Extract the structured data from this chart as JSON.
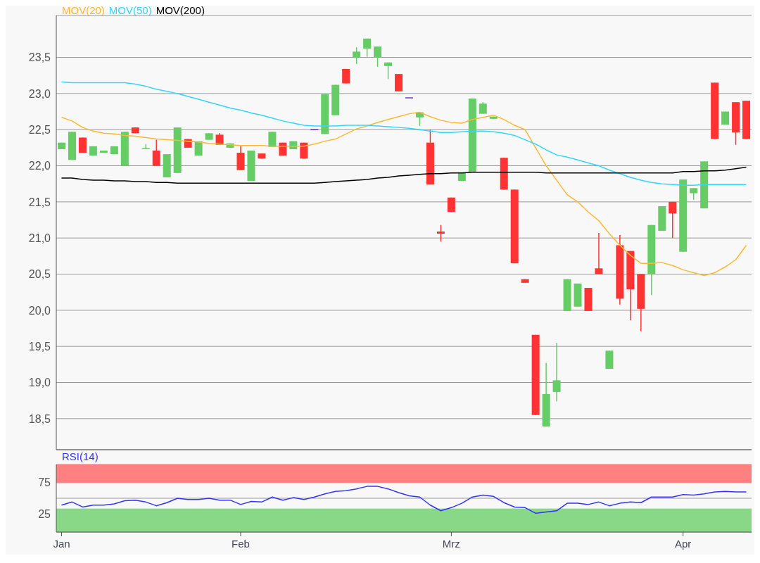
{
  "chart_data": [
    {
      "type": "candlestick",
      "categories": [
        null,
        null,
        null,
        null,
        null,
        null,
        null,
        null,
        null,
        null,
        null,
        null,
        null,
        null,
        null,
        null,
        null,
        null,
        null,
        null,
        null,
        null,
        null,
        null,
        null,
        null,
        null,
        null,
        null,
        null,
        null,
        null,
        null,
        null,
        null,
        null,
        null,
        null,
        null,
        null,
        null,
        null,
        null,
        null,
        null,
        null,
        null,
        null,
        null,
        null,
        null,
        null,
        null,
        null,
        null,
        null,
        null,
        null,
        null,
        null,
        null,
        null,
        null,
        null,
        null,
        null
      ],
      "ohlc": [
        [
          22.23,
          22.32,
          22.23,
          22.32
        ],
        [
          22.08,
          22.47,
          22.08,
          22.47
        ],
        [
          22.39,
          22.39,
          22.18,
          22.18
        ],
        [
          22.14,
          22.27,
          22.14,
          22.27
        ],
        [
          22.18,
          22.21,
          22.18,
          22.21
        ],
        [
          22.16,
          22.27,
          22.16,
          22.27
        ],
        [
          22.0,
          22.47,
          22.0,
          22.47
        ],
        [
          22.53,
          22.53,
          22.45,
          22.45
        ],
        [
          22.23,
          22.3,
          22.23,
          22.24
        ],
        [
          22.21,
          22.36,
          22.0,
          22.0
        ],
        [
          21.84,
          22.16,
          21.84,
          22.16
        ],
        [
          21.9,
          22.53,
          21.9,
          22.53
        ],
        [
          22.37,
          22.37,
          22.25,
          22.25
        ],
        [
          22.14,
          22.34,
          22.14,
          22.34
        ],
        [
          22.36,
          22.45,
          22.36,
          22.45
        ],
        [
          22.43,
          22.45,
          22.29,
          22.29
        ],
        [
          22.25,
          22.31,
          22.25,
          22.31
        ],
        [
          22.18,
          22.27,
          21.94,
          21.94
        ],
        [
          21.79,
          22.21,
          21.79,
          22.21
        ],
        [
          22.17,
          22.17,
          22.1,
          22.1
        ],
        [
          22.26,
          22.47,
          22.26,
          22.47
        ],
        [
          22.32,
          22.32,
          22.14,
          22.14
        ],
        [
          22.23,
          22.34,
          22.23,
          22.34
        ],
        [
          22.32,
          22.32,
          22.1,
          22.1
        ],
        [
          22.5,
          22.5,
          22.5,
          22.5
        ],
        [
          22.44,
          22.99,
          22.44,
          22.99
        ],
        [
          22.7,
          23.12,
          22.7,
          23.12
        ],
        [
          23.34,
          23.34,
          23.14,
          23.14
        ],
        [
          23.5,
          23.64,
          23.41,
          23.58
        ],
        [
          23.62,
          23.76,
          23.51,
          23.76
        ],
        [
          23.5,
          23.65,
          23.37,
          23.65
        ],
        [
          23.38,
          23.43,
          23.2,
          23.43
        ],
        [
          23.27,
          23.27,
          23.03,
          23.03
        ],
        [
          22.94,
          22.94,
          22.94,
          22.94
        ],
        [
          22.67,
          22.74,
          22.55,
          22.74
        ],
        [
          22.32,
          22.5,
          21.74,
          21.74
        ],
        [
          21.09,
          21.18,
          20.95,
          21.06
        ],
        [
          21.56,
          21.56,
          21.36,
          21.36
        ],
        [
          21.79,
          21.91,
          21.79,
          21.91
        ],
        [
          21.91,
          22.93,
          21.91,
          22.93
        ],
        [
          22.72,
          22.88,
          22.72,
          22.86
        ],
        [
          22.65,
          22.68,
          22.65,
          22.68
        ],
        [
          22.11,
          22.11,
          21.67,
          21.67
        ],
        [
          21.67,
          21.67,
          20.65,
          20.65
        ],
        [
          20.43,
          20.43,
          20.38,
          20.38
        ],
        [
          19.66,
          19.66,
          18.55,
          18.55
        ],
        [
          18.39,
          19.27,
          18.39,
          18.84
        ],
        [
          18.87,
          19.55,
          18.74,
          19.03
        ],
        [
          19.99,
          20.43,
          19.99,
          20.43
        ],
        [
          20.05,
          20.37,
          20.05,
          20.37
        ],
        [
          20.31,
          20.31,
          19.99,
          19.99
        ],
        [
          20.58,
          21.07,
          20.5,
          20.5
        ],
        [
          19.19,
          19.44,
          19.19,
          19.44
        ],
        [
          20.9,
          21.04,
          20.08,
          20.16
        ],
        [
          20.82,
          20.82,
          19.86,
          20.29
        ],
        [
          20.5,
          20.5,
          19.71,
          20.02
        ],
        [
          20.5,
          21.18,
          20.21,
          21.18
        ],
        [
          21.1,
          21.44,
          21.1,
          21.44
        ],
        [
          21.5,
          21.5,
          21.0,
          21.34
        ],
        [
          20.81,
          21.81,
          20.81,
          21.81
        ],
        [
          21.62,
          21.69,
          21.53,
          21.69
        ],
        [
          21.41,
          22.06,
          21.41,
          22.06
        ],
        [
          23.15,
          23.15,
          22.37,
          22.37
        ],
        [
          22.57,
          22.75,
          22.57,
          22.75
        ],
        [
          22.88,
          22.88,
          22.29,
          22.46
        ],
        [
          22.9,
          22.9,
          22.37,
          22.37
        ]
      ],
      "colors": [
        "#66cc66",
        "#66cc66",
        "#ff3333",
        "#66cc66",
        "#66cc66",
        "#66cc66",
        "#66cc66",
        "#ff3333",
        "#66cc66",
        "#ff3333",
        "#66cc66",
        "#66cc66",
        "#ff3333",
        "#66cc66",
        "#66cc66",
        "#ff3333",
        "#66cc66",
        "#ff3333",
        "#66cc66",
        "#ff3333",
        "#66cc66",
        "#ff3333",
        "#66cc66",
        "#ff3333",
        "#6633cc",
        "#66cc66",
        "#66cc66",
        "#ff3333",
        "#66cc66",
        "#66cc66",
        "#66cc66",
        "#66cc66",
        "#ff3333",
        "#6633cc",
        "#66cc66",
        "#ff3333",
        "#ff3333",
        "#ff3333",
        "#66cc66",
        "#66cc66",
        "#66cc66",
        "#66cc66",
        "#ff3333",
        "#ff3333",
        "#ff3333",
        "#ff3333",
        "#66cc66",
        "#66cc66",
        "#66cc66",
        "#66cc66",
        "#ff3333",
        "#ff3333",
        "#66cc66",
        "#ff3333",
        "#ff3333",
        "#ff3333",
        "#66cc66",
        "#66cc66",
        "#ff3333",
        "#66cc66",
        "#66cc66",
        "#66cc66",
        "#ff3333",
        "#66cc66",
        "#ff3333",
        "#ff3333"
      ],
      "series": [
        {
          "name": "MOV(20)",
          "type": "line",
          "color": "#ffb833",
          "values": [
            22.67,
            22.62,
            22.53,
            22.48,
            22.45,
            22.44,
            22.42,
            22.41,
            22.39,
            22.37,
            22.36,
            22.35,
            22.34,
            22.33,
            22.31,
            22.3,
            22.29,
            22.28,
            22.28,
            22.28,
            22.27,
            22.27,
            22.27,
            22.27,
            22.3,
            22.34,
            22.37,
            22.44,
            22.51,
            22.55,
            22.6,
            22.64,
            22.68,
            22.72,
            22.74,
            22.68,
            22.63,
            22.6,
            22.59,
            22.64,
            22.67,
            22.7,
            22.64,
            22.56,
            22.5,
            22.25,
            22.0,
            21.8,
            21.6,
            21.5,
            21.36,
            21.24,
            21.06,
            20.9,
            20.76,
            20.65,
            20.65,
            20.66,
            20.62,
            20.56,
            20.52,
            20.48,
            20.52,
            20.6,
            20.7,
            20.9
          ]
        },
        {
          "name": "MOV(50)",
          "type": "line",
          "color": "#33d6ff",
          "values": [
            23.16,
            23.15,
            23.15,
            23.15,
            23.15,
            23.15,
            23.15,
            23.13,
            23.1,
            23.06,
            23.03,
            23.0,
            22.96,
            22.92,
            22.88,
            22.84,
            22.8,
            22.77,
            22.73,
            22.7,
            22.66,
            22.62,
            22.59,
            22.56,
            22.55,
            22.55,
            22.55,
            22.56,
            22.56,
            22.56,
            22.55,
            22.54,
            22.53,
            22.52,
            22.5,
            22.48,
            22.46,
            22.46,
            22.47,
            22.48,
            22.48,
            22.47,
            22.45,
            22.42,
            22.36,
            22.3,
            22.22,
            22.15,
            22.12,
            22.08,
            22.04,
            22.0,
            21.94,
            21.89,
            21.84,
            21.8,
            21.77,
            21.75,
            21.74,
            21.73,
            21.73,
            21.74,
            21.74,
            21.74,
            21.74,
            21.74
          ]
        },
        {
          "name": "MOV(200)",
          "type": "line",
          "color": "#000000",
          "values": [
            21.83,
            21.83,
            21.81,
            21.8,
            21.8,
            21.79,
            21.79,
            21.78,
            21.78,
            21.77,
            21.77,
            21.76,
            21.76,
            21.76,
            21.76,
            21.76,
            21.76,
            21.76,
            21.76,
            21.76,
            21.76,
            21.76,
            21.76,
            21.76,
            21.76,
            21.77,
            21.78,
            21.79,
            21.8,
            21.81,
            21.83,
            21.84,
            21.86,
            21.87,
            21.88,
            21.89,
            21.89,
            21.9,
            21.9,
            21.91,
            21.91,
            21.91,
            21.91,
            21.91,
            21.91,
            21.91,
            21.9,
            21.9,
            21.9,
            21.9,
            21.9,
            21.9,
            21.9,
            21.9,
            21.9,
            21.9,
            21.9,
            21.9,
            21.9,
            21.92,
            21.92,
            21.93,
            21.93,
            21.94,
            21.96,
            21.98
          ]
        }
      ],
      "ylim": [
        18.07,
        24.08
      ],
      "yticks": [
        {
          "value": 18.5,
          "label": "18,5"
        },
        {
          "value": 19,
          "label": "19,0"
        },
        {
          "value": 19.5,
          "label": "19,5"
        },
        {
          "value": 20,
          "label": "20,0"
        },
        {
          "value": 20.5,
          "label": "20,5"
        },
        {
          "value": 21,
          "label": "21,0"
        },
        {
          "value": 21.5,
          "label": "21,5"
        },
        {
          "value": 22,
          "label": "22,0"
        },
        {
          "value": 22.5,
          "label": "22,5"
        },
        {
          "value": 23,
          "label": "23,0"
        },
        {
          "value": 23.5,
          "label": "23,5"
        }
      ],
      "grid": "y",
      "legend": "top left",
      "marker": "none",
      "tick_labels": "y"
    },
    {
      "type": "line",
      "categories": [
        "Jan",
        null,
        null,
        null,
        null,
        null,
        null,
        null,
        null,
        null,
        null,
        null,
        null,
        null,
        null,
        null,
        null,
        "Feb",
        null,
        null,
        null,
        null,
        null,
        null,
        null,
        null,
        null,
        null,
        null,
        null,
        null,
        null,
        null,
        null,
        null,
        null,
        null,
        "Mrz",
        null,
        null,
        null,
        null,
        null,
        null,
        null,
        null,
        null,
        null,
        null,
        null,
        null,
        null,
        null,
        null,
        null,
        null,
        null,
        null,
        null,
        "Apr",
        null,
        null,
        null,
        null,
        null,
        null
      ],
      "series": [
        {
          "name": "RSI(14)",
          "color": "#3333ff",
          "values": [
            39,
            44,
            36,
            39,
            39,
            41,
            46,
            47,
            44,
            38,
            43,
            50,
            48,
            48,
            50,
            47,
            47,
            40,
            45,
            44,
            52,
            47,
            51,
            48,
            52,
            57,
            61,
            62,
            65,
            69,
            69,
            65,
            59,
            54,
            52,
            39,
            30,
            35,
            42,
            52,
            55,
            53,
            43,
            36,
            35,
            26,
            28,
            30,
            42,
            42,
            40,
            44,
            38,
            42,
            44,
            43,
            52,
            52,
            52,
            56,
            55,
            57,
            60,
            61,
            60,
            60
          ]
        }
      ],
      "ylim": [
        -4,
        104
      ],
      "yticks": [
        25,
        {
          "value": 50,
          "label": null
        },
        75
      ],
      "bands": [
        {
          "axis": "y",
          "from": 75,
          "to": 104,
          "color": "#ff8080"
        },
        {
          "axis": "y",
          "from": -4,
          "to": 33,
          "color": "#88d888"
        }
      ],
      "grid": "y",
      "legend": "top left",
      "marker": "none"
    }
  ]
}
